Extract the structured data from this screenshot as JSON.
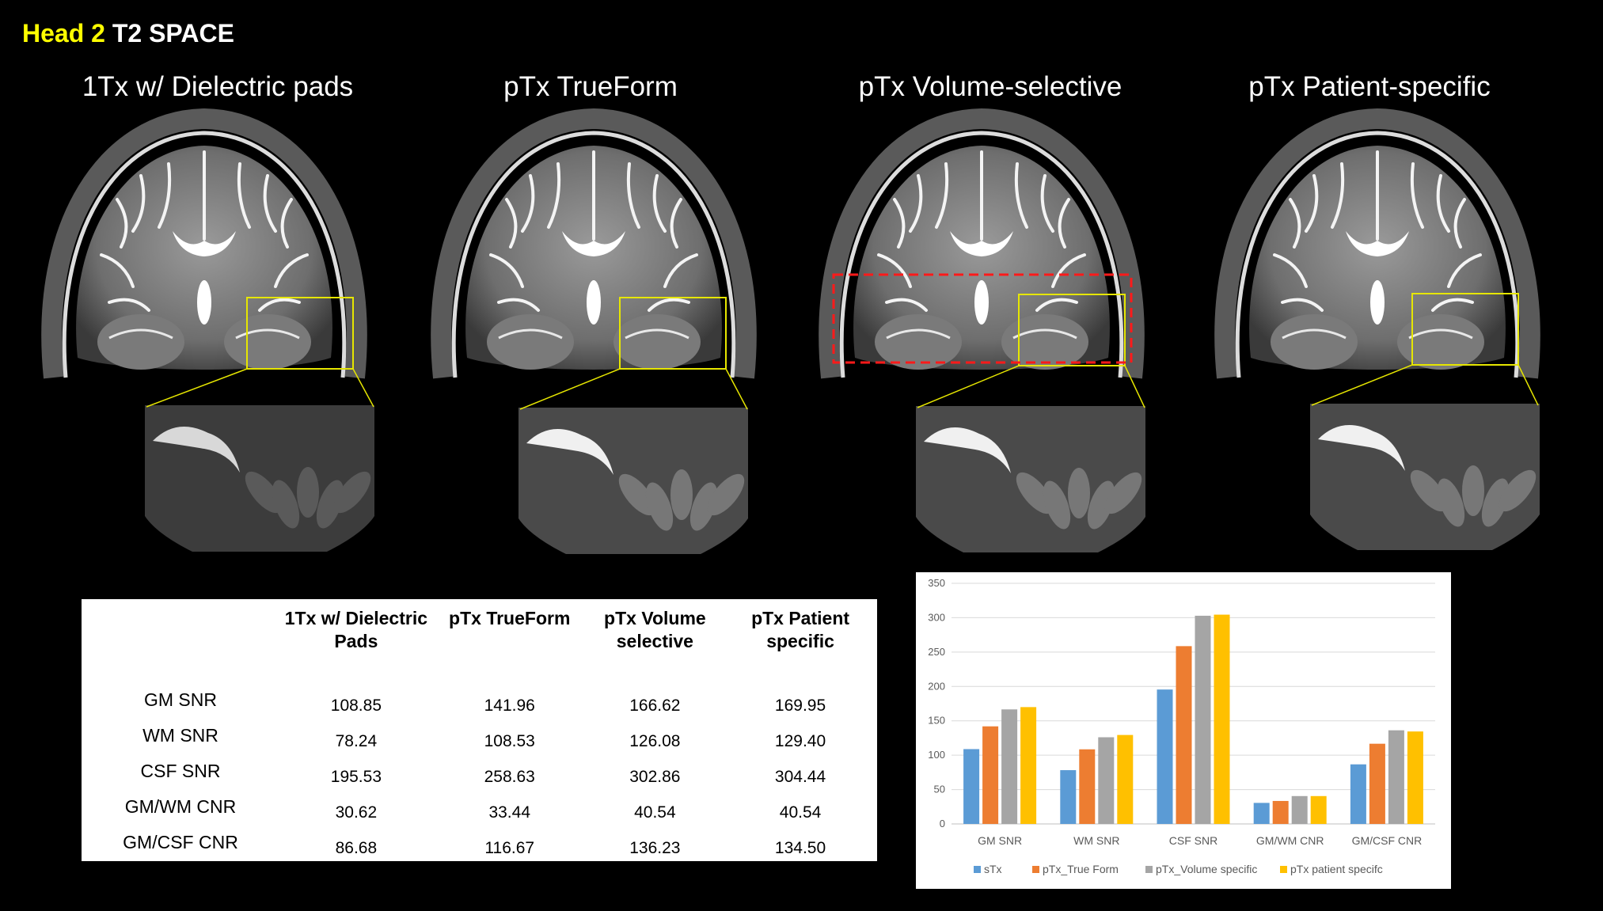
{
  "slide": {
    "title_highlight": "Head 2",
    "title_rest": " T2 SPACE"
  },
  "columns": [
    {
      "title": "1Tx w/ Dielectric pads"
    },
    {
      "title": "pTx TrueForm"
    },
    {
      "title": "pTx Volume-selective"
    },
    {
      "title": "pTx Patient-specific"
    }
  ],
  "colors": {
    "background": "#000000",
    "highlight": "#ffff00",
    "roi_box": "#e6e600",
    "volume_box": "#ff1a1a"
  },
  "table": {
    "headers": [
      "",
      "1Tx w/ Dielectric Pads",
      "pTx TrueForm",
      "pTx Volume selective",
      "pTx Patient specific"
    ],
    "rows": [
      {
        "label": "GM SNR",
        "values": [
          "108.85",
          "141.96",
          "166.62",
          "169.95"
        ]
      },
      {
        "label": "WM SNR",
        "values": [
          "78.24",
          "108.53",
          "126.08",
          "129.40"
        ]
      },
      {
        "label": "CSF SNR",
        "values": [
          "195.53",
          "258.63",
          "302.86",
          "304.44"
        ]
      },
      {
        "label": "GM/WM CNR",
        "values": [
          "30.62",
          "33.44",
          "40.54",
          "40.54"
        ]
      },
      {
        "label": "GM/CSF CNR",
        "values": [
          "86.68",
          "116.67",
          "136.23",
          "134.50"
        ]
      }
    ]
  },
  "chart_data": {
    "type": "bar",
    "categories": [
      "GM SNR",
      "WM SNR",
      "CSF SNR",
      "GM/WM CNR",
      "GM/CSF CNR"
    ],
    "series": [
      {
        "name": "sTx",
        "color": "#5b9bd5",
        "values": [
          108.85,
          78.24,
          195.53,
          30.62,
          86.68
        ]
      },
      {
        "name": "pTx_True Form",
        "color": "#ed7d31",
        "values": [
          141.96,
          108.53,
          258.63,
          33.44,
          116.67
        ]
      },
      {
        "name": "pTx_Volume specific",
        "color": "#a5a5a5",
        "values": [
          166.62,
          126.08,
          302.86,
          40.54,
          136.23
        ]
      },
      {
        "name": "pTx patient specifc",
        "color": "#ffc000",
        "values": [
          169.95,
          129.4,
          304.44,
          40.54,
          134.5
        ]
      }
    ],
    "ylim": [
      0,
      350
    ],
    "yticks": [
      0,
      50,
      100,
      150,
      200,
      250,
      300,
      350
    ],
    "grid": true,
    "legend": "bottom",
    "title": "",
    "xlabel": "",
    "ylabel": ""
  }
}
